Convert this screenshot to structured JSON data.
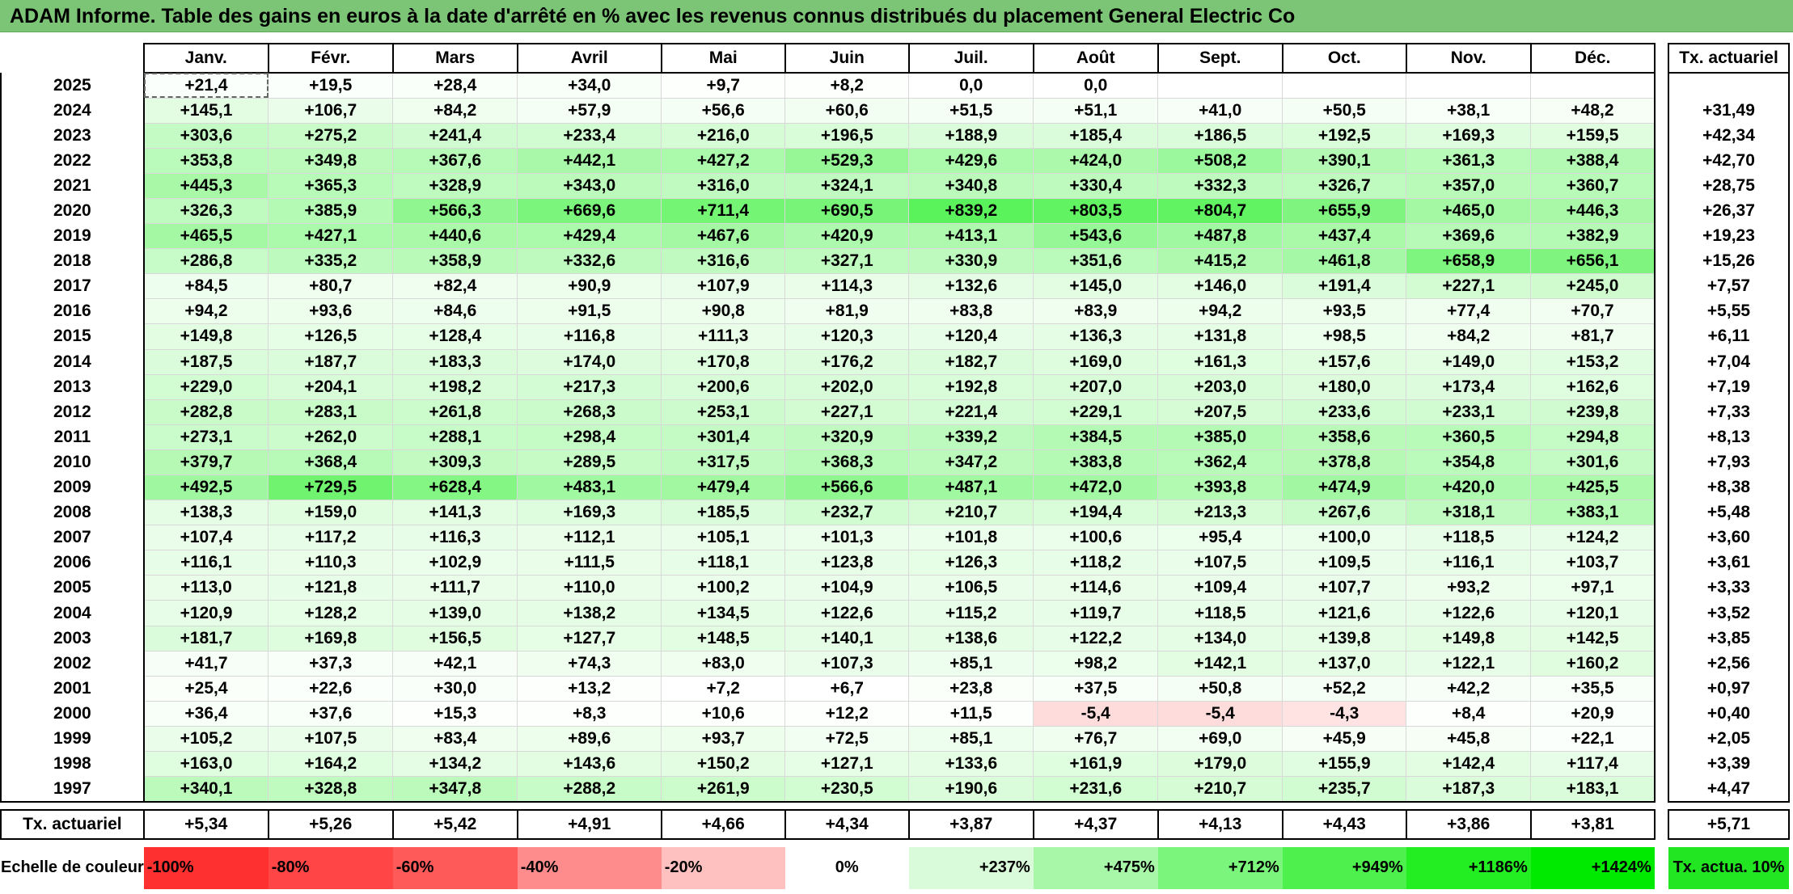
{
  "title": "ADAM Informe. Table des gains en euros à la date d'arrêté en % avec les revenus connus distribués du placement General Electric Co",
  "colors": {
    "title_bg": "#7cc576",
    "positive_max": "#00ff00",
    "negative_max": "#ff0000",
    "neutral": "#ffffff"
  },
  "chart_data": {
    "type": "heatmap",
    "title": "ADAM Informe. Table des gains en euros à la date d'arrêté en % avec les revenus connus distribués du placement General Electric Co",
    "months": [
      "Janv.",
      "Févr.",
      "Mars",
      "Avril",
      "Mai",
      "Juin",
      "Juil.",
      "Août",
      "Sept.",
      "Oct.",
      "Nov.",
      "Déc."
    ],
    "side_header": "Tx. actuariel",
    "rows": [
      {
        "year": "2025",
        "values": [
          "+21,4",
          "+19,5",
          "+28,4",
          "+34,0",
          "+9,7",
          "+8,2",
          "0,0",
          "0,0",
          "",
          "",
          "",
          ""
        ],
        "rate": ""
      },
      {
        "year": "2024",
        "values": [
          "+145,1",
          "+106,7",
          "+84,2",
          "+57,9",
          "+56,6",
          "+60,6",
          "+51,5",
          "+51,1",
          "+41,0",
          "+50,5",
          "+38,1",
          "+48,2"
        ],
        "rate": "+31,49"
      },
      {
        "year": "2023",
        "values": [
          "+303,6",
          "+275,2",
          "+241,4",
          "+233,4",
          "+216,0",
          "+196,5",
          "+188,9",
          "+185,4",
          "+186,5",
          "+192,5",
          "+169,3",
          "+159,5"
        ],
        "rate": "+42,34"
      },
      {
        "year": "2022",
        "values": [
          "+353,8",
          "+349,8",
          "+367,6",
          "+442,1",
          "+427,2",
          "+529,3",
          "+429,6",
          "+424,0",
          "+508,2",
          "+390,1",
          "+361,3",
          "+388,4"
        ],
        "rate": "+42,70"
      },
      {
        "year": "2021",
        "values": [
          "+445,3",
          "+365,3",
          "+328,9",
          "+343,0",
          "+316,0",
          "+324,1",
          "+340,8",
          "+330,4",
          "+332,3",
          "+326,7",
          "+357,0",
          "+360,7"
        ],
        "rate": "+28,75"
      },
      {
        "year": "2020",
        "values": [
          "+326,3",
          "+385,9",
          "+566,3",
          "+669,6",
          "+711,4",
          "+690,5",
          "+839,2",
          "+803,5",
          "+804,7",
          "+655,9",
          "+465,0",
          "+446,3"
        ],
        "rate": "+26,37"
      },
      {
        "year": "2019",
        "values": [
          "+465,5",
          "+427,1",
          "+440,6",
          "+429,4",
          "+467,6",
          "+420,9",
          "+413,1",
          "+543,6",
          "+487,8",
          "+437,4",
          "+369,6",
          "+382,9"
        ],
        "rate": "+19,23"
      },
      {
        "year": "2018",
        "values": [
          "+286,8",
          "+335,2",
          "+358,9",
          "+332,6",
          "+316,6",
          "+327,1",
          "+330,9",
          "+351,6",
          "+415,2",
          "+461,8",
          "+658,9",
          "+656,1"
        ],
        "rate": "+15,26"
      },
      {
        "year": "2017",
        "values": [
          "+84,5",
          "+80,7",
          "+82,4",
          "+90,9",
          "+107,9",
          "+114,3",
          "+132,6",
          "+145,0",
          "+146,0",
          "+191,4",
          "+227,1",
          "+245,0"
        ],
        "rate": "+7,57"
      },
      {
        "year": "2016",
        "values": [
          "+94,2",
          "+93,6",
          "+84,6",
          "+91,5",
          "+90,8",
          "+81,9",
          "+83,8",
          "+83,9",
          "+94,2",
          "+93,5",
          "+77,4",
          "+70,7"
        ],
        "rate": "+5,55"
      },
      {
        "year": "2015",
        "values": [
          "+149,8",
          "+126,5",
          "+128,4",
          "+116,8",
          "+111,3",
          "+120,3",
          "+120,4",
          "+136,3",
          "+131,8",
          "+98,5",
          "+84,2",
          "+81,7"
        ],
        "rate": "+6,11"
      },
      {
        "year": "2014",
        "values": [
          "+187,5",
          "+187,7",
          "+183,3",
          "+174,0",
          "+170,8",
          "+176,2",
          "+182,7",
          "+169,0",
          "+161,3",
          "+157,6",
          "+149,0",
          "+153,2"
        ],
        "rate": "+7,04"
      },
      {
        "year": "2013",
        "values": [
          "+229,0",
          "+204,1",
          "+198,2",
          "+217,3",
          "+200,6",
          "+202,0",
          "+192,8",
          "+207,0",
          "+203,0",
          "+180,0",
          "+173,4",
          "+162,6"
        ],
        "rate": "+7,19"
      },
      {
        "year": "2012",
        "values": [
          "+282,8",
          "+283,1",
          "+261,8",
          "+268,3",
          "+253,1",
          "+227,1",
          "+221,4",
          "+229,1",
          "+207,5",
          "+233,6",
          "+233,1",
          "+239,8"
        ],
        "rate": "+7,33"
      },
      {
        "year": "2011",
        "values": [
          "+273,1",
          "+262,0",
          "+288,1",
          "+298,4",
          "+301,4",
          "+320,9",
          "+339,2",
          "+384,5",
          "+385,0",
          "+358,6",
          "+360,5",
          "+294,8"
        ],
        "rate": "+8,13"
      },
      {
        "year": "2010",
        "values": [
          "+379,7",
          "+368,4",
          "+309,3",
          "+289,5",
          "+317,5",
          "+368,3",
          "+347,2",
          "+383,8",
          "+362,4",
          "+378,8",
          "+354,8",
          "+301,6"
        ],
        "rate": "+7,93"
      },
      {
        "year": "2009",
        "values": [
          "+492,5",
          "+729,5",
          "+628,4",
          "+483,1",
          "+479,4",
          "+566,6",
          "+487,1",
          "+472,0",
          "+393,8",
          "+474,9",
          "+420,0",
          "+425,5"
        ],
        "rate": "+8,38"
      },
      {
        "year": "2008",
        "values": [
          "+138,3",
          "+159,0",
          "+141,3",
          "+169,3",
          "+185,5",
          "+232,7",
          "+210,7",
          "+194,4",
          "+213,3",
          "+267,6",
          "+318,1",
          "+383,1"
        ],
        "rate": "+5,48"
      },
      {
        "year": "2007",
        "values": [
          "+107,4",
          "+117,2",
          "+116,3",
          "+112,1",
          "+105,1",
          "+101,3",
          "+101,8",
          "+100,6",
          "+95,4",
          "+100,0",
          "+118,5",
          "+124,2"
        ],
        "rate": "+3,60"
      },
      {
        "year": "2006",
        "values": [
          "+116,1",
          "+110,3",
          "+102,9",
          "+111,5",
          "+118,1",
          "+123,8",
          "+126,3",
          "+118,2",
          "+107,5",
          "+109,5",
          "+116,1",
          "+103,7"
        ],
        "rate": "+3,61"
      },
      {
        "year": "2005",
        "values": [
          "+113,0",
          "+121,8",
          "+111,7",
          "+110,0",
          "+100,2",
          "+104,9",
          "+106,5",
          "+114,6",
          "+109,4",
          "+107,7",
          "+93,2",
          "+97,1"
        ],
        "rate": "+3,33"
      },
      {
        "year": "2004",
        "values": [
          "+120,9",
          "+128,2",
          "+139,0",
          "+138,2",
          "+134,5",
          "+122,6",
          "+115,2",
          "+119,7",
          "+118,5",
          "+121,6",
          "+122,6",
          "+120,1"
        ],
        "rate": "+3,52"
      },
      {
        "year": "2003",
        "values": [
          "+181,7",
          "+169,8",
          "+156,5",
          "+127,7",
          "+148,5",
          "+140,1",
          "+138,6",
          "+122,2",
          "+134,0",
          "+139,8",
          "+149,8",
          "+142,5"
        ],
        "rate": "+3,85"
      },
      {
        "year": "2002",
        "values": [
          "+41,7",
          "+37,3",
          "+42,1",
          "+74,3",
          "+83,0",
          "+107,3",
          "+85,1",
          "+98,2",
          "+142,1",
          "+137,0",
          "+122,1",
          "+160,2"
        ],
        "rate": "+2,56"
      },
      {
        "year": "2001",
        "values": [
          "+25,4",
          "+22,6",
          "+30,0",
          "+13,2",
          "+7,2",
          "+6,7",
          "+23,8",
          "+37,5",
          "+50,8",
          "+52,2",
          "+42,2",
          "+35,5"
        ],
        "rate": "+0,97"
      },
      {
        "year": "2000",
        "values": [
          "+36,4",
          "+37,6",
          "+15,3",
          "+8,3",
          "+10,6",
          "+12,2",
          "+11,5",
          "-5,4",
          "-5,4",
          "-4,3",
          "+8,4",
          "+20,9"
        ],
        "rate": "+0,40"
      },
      {
        "year": "1999",
        "values": [
          "+105,2",
          "+107,5",
          "+83,4",
          "+89,6",
          "+93,7",
          "+72,5",
          "+85,1",
          "+76,7",
          "+69,0",
          "+45,9",
          "+45,8",
          "+22,1"
        ],
        "rate": "+2,05"
      },
      {
        "year": "1998",
        "values": [
          "+163,0",
          "+164,2",
          "+134,2",
          "+143,6",
          "+150,2",
          "+127,1",
          "+133,6",
          "+161,9",
          "+179,0",
          "+155,9",
          "+142,4",
          "+117,4"
        ],
        "rate": "+3,39"
      },
      {
        "year": "1997",
        "values": [
          "+340,1",
          "+328,8",
          "+347,8",
          "+288,2",
          "+261,9",
          "+230,5",
          "+190,6",
          "+231,6",
          "+210,7",
          "+235,7",
          "+187,3",
          "+183,1"
        ],
        "rate": "+4,47"
      }
    ],
    "summary": {
      "label": "Tx. actuariel",
      "values": [
        "+5,34",
        "+5,26",
        "+5,42",
        "+4,91",
        "+4,66",
        "+4,34",
        "+3,87",
        "+4,37",
        "+4,13",
        "+4,43",
        "+3,86",
        "+3,81"
      ],
      "rate": "+5,71"
    },
    "legend": {
      "label": "Echelle de couleur",
      "steps": [
        {
          "label": "-100%",
          "color": "#ff3030"
        },
        {
          "label": "-80%",
          "color": "#ff4545"
        },
        {
          "label": "-60%",
          "color": "#ff5a5a"
        },
        {
          "label": "-40%",
          "color": "#ff8c8c"
        },
        {
          "label": "-20%",
          "color": "#ffc0c0"
        },
        {
          "label": "0%",
          "color": "#ffffff"
        },
        {
          "label": "+237%",
          "color": "#d9fbd9"
        },
        {
          "label": "+475%",
          "color": "#a8f7a8"
        },
        {
          "label": "+712%",
          "color": "#7cf57c"
        },
        {
          "label": "+949%",
          "color": "#4df04d"
        },
        {
          "label": "+1186%",
          "color": "#22ee22"
        },
        {
          "label": "+1424%",
          "color": "#00ea00"
        }
      ],
      "side_label": "Tx. actua. 10%",
      "side_color": "#22e622"
    }
  }
}
